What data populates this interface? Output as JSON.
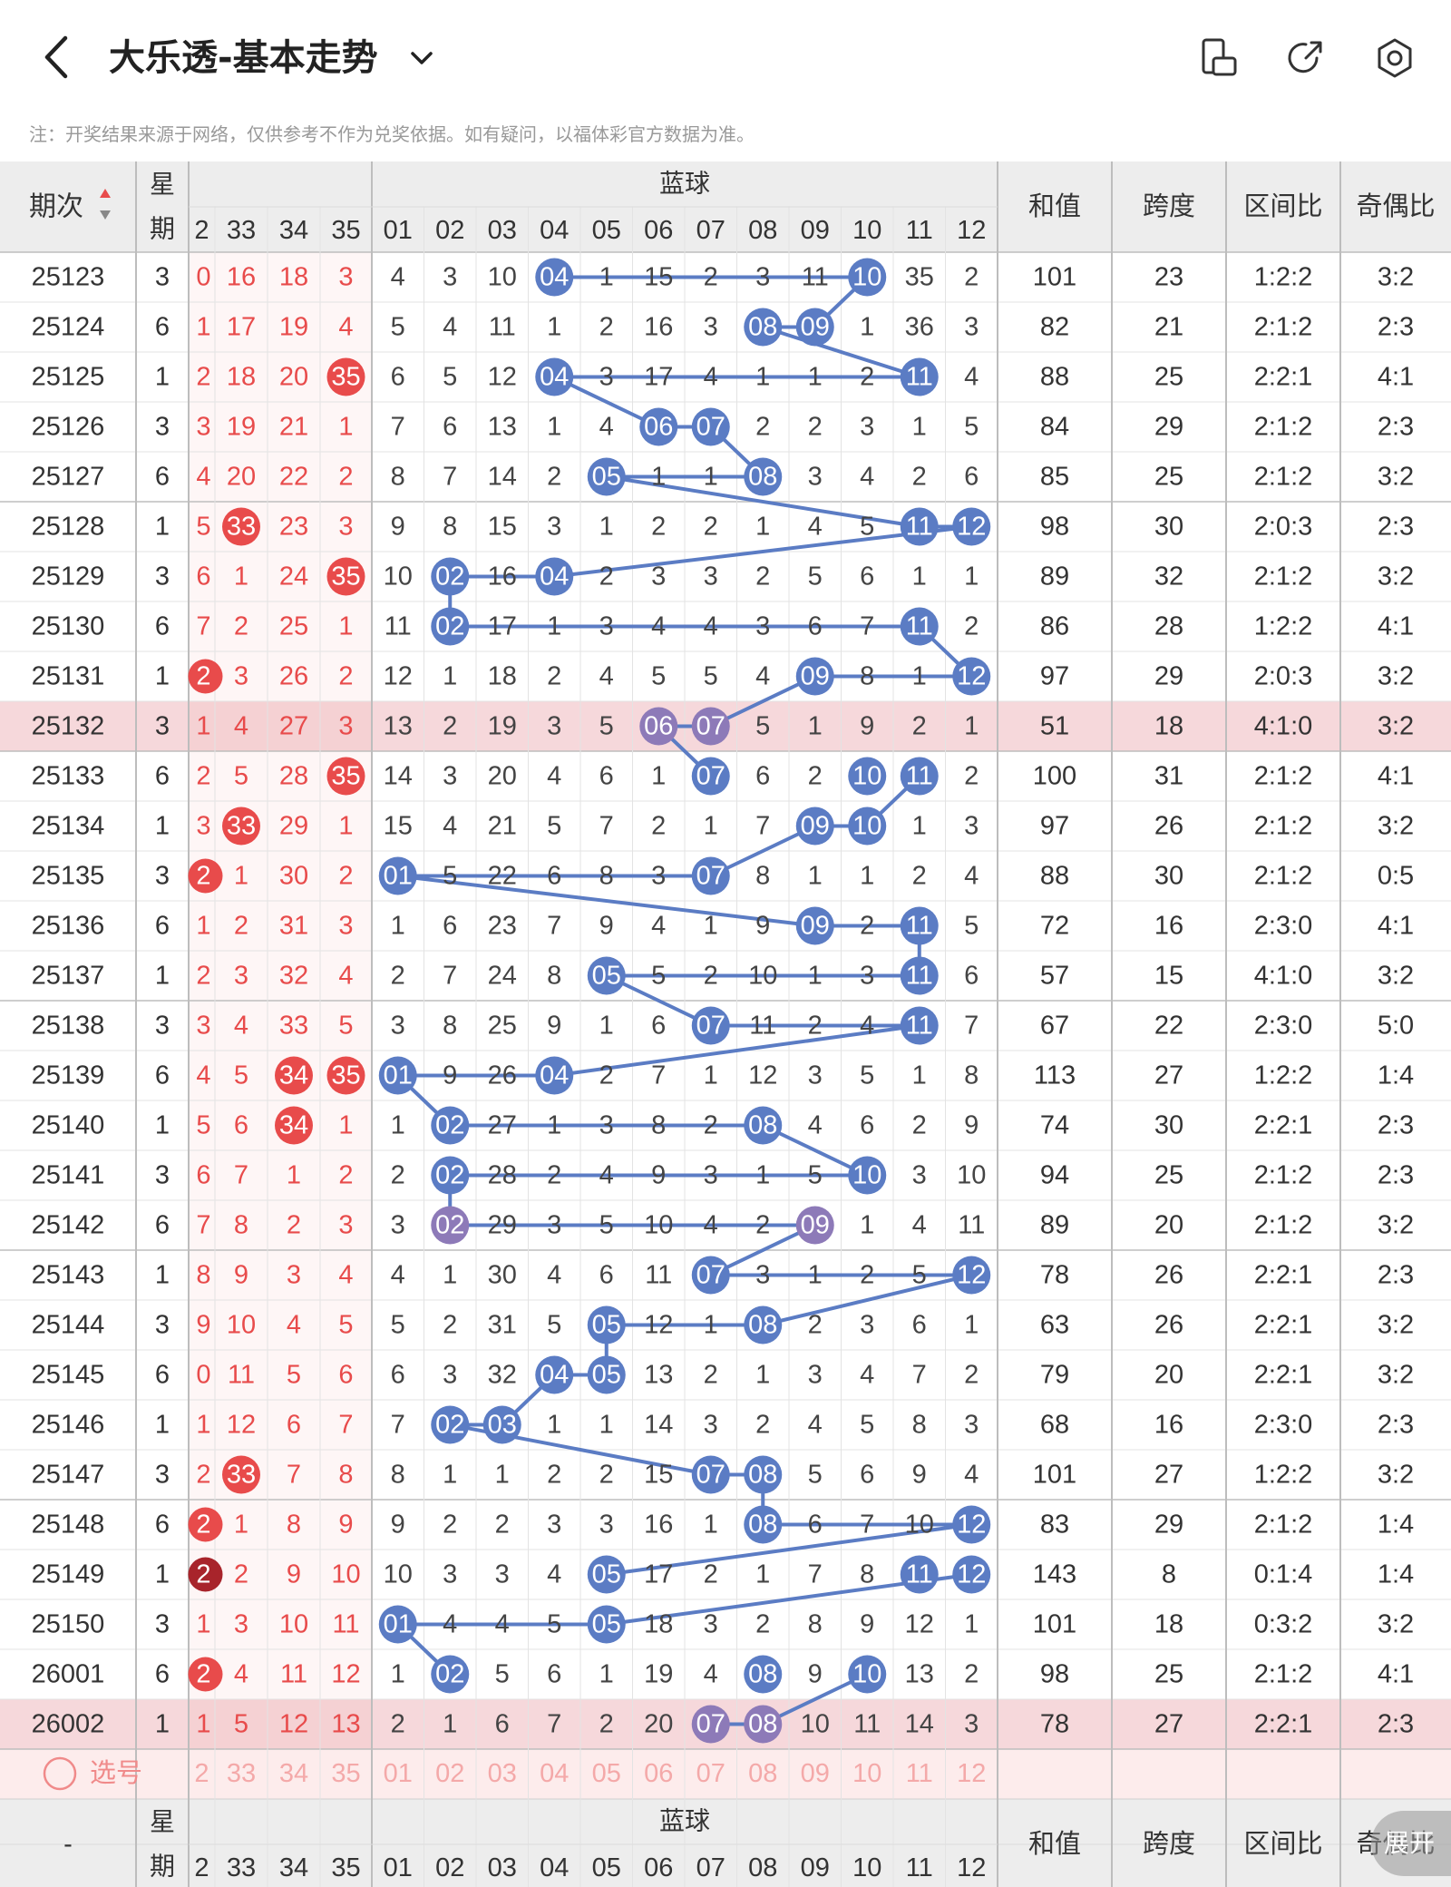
{
  "header": {
    "title": "大乐透-基本走势",
    "back_icon": "chevron-left-icon",
    "dropdown_icon": "chevron-down-icon",
    "action_icons": [
      "phone-rotate-icon",
      "share-icon",
      "settings-icon"
    ]
  },
  "note": "注：开奖结果来源于网络，仅供参考不作为兑奖依据。如有疑问，以福体彩官方数据为准。",
  "table": {
    "header": {
      "period": "期次",
      "weekday_top": "星",
      "weekday_bottom": "期",
      "blue_group": "蓝球",
      "sum": "和值",
      "span": "跨度",
      "zone_ratio": "区间比",
      "odd_even": "奇偶比"
    },
    "front_cols": [
      "2",
      "33",
      "34",
      "35"
    ],
    "blue_cols": [
      "01",
      "02",
      "03",
      "04",
      "05",
      "06",
      "07",
      "08",
      "09",
      "10",
      "11",
      "12"
    ],
    "rows": [
      {
        "period": "25123",
        "week": "3",
        "f": [
          "0",
          "16",
          "18",
          "3"
        ],
        "b": [
          "4",
          "3",
          "10",
          "04",
          "1",
          "15",
          "2",
          "3",
          "11",
          "10",
          "35",
          "2"
        ],
        "sum": "101",
        "span": "23",
        "zone": "1:2:2",
        "oe": "3:2"
      },
      {
        "period": "25124",
        "week": "6",
        "f": [
          "1",
          "17",
          "19",
          "4"
        ],
        "b": [
          "5",
          "4",
          "11",
          "1",
          "2",
          "16",
          "3",
          "08",
          "09",
          "1",
          "36",
          "3"
        ],
        "sum": "82",
        "span": "21",
        "zone": "2:1:2",
        "oe": "2:3"
      },
      {
        "period": "25125",
        "week": "1",
        "f": [
          "2",
          "18",
          "20",
          "35"
        ],
        "b": [
          "6",
          "5",
          "12",
          "04",
          "3",
          "17",
          "4",
          "1",
          "1",
          "2",
          "11",
          "4"
        ],
        "sum": "88",
        "span": "25",
        "zone": "2:2:1",
        "oe": "4:1"
      },
      {
        "period": "25126",
        "week": "3",
        "f": [
          "3",
          "19",
          "21",
          "1"
        ],
        "b": [
          "7",
          "6",
          "13",
          "1",
          "4",
          "06",
          "07",
          "2",
          "2",
          "3",
          "1",
          "5"
        ],
        "sum": "84",
        "span": "29",
        "zone": "2:1:2",
        "oe": "2:3"
      },
      {
        "period": "25127",
        "week": "6",
        "f": [
          "4",
          "20",
          "22",
          "2"
        ],
        "b": [
          "8",
          "7",
          "14",
          "2",
          "05",
          "1",
          "1",
          "08",
          "3",
          "4",
          "2",
          "6"
        ],
        "sum": "85",
        "span": "25",
        "zone": "2:1:2",
        "oe": "3:2"
      },
      {
        "period": "25128",
        "week": "1",
        "f": [
          "5",
          "33",
          "23",
          "3"
        ],
        "b": [
          "9",
          "8",
          "15",
          "3",
          "1",
          "2",
          "2",
          "1",
          "4",
          "5",
          "11",
          "12"
        ],
        "sum": "98",
        "span": "30",
        "zone": "2:0:3",
        "oe": "2:3"
      },
      {
        "period": "25129",
        "week": "3",
        "f": [
          "6",
          "1",
          "24",
          "35"
        ],
        "b": [
          "10",
          "02",
          "16",
          "04",
          "2",
          "3",
          "3",
          "2",
          "5",
          "6",
          "1",
          "1"
        ],
        "sum": "89",
        "span": "32",
        "zone": "2:1:2",
        "oe": "3:2"
      },
      {
        "period": "25130",
        "week": "6",
        "f": [
          "7",
          "2",
          "25",
          "1"
        ],
        "b": [
          "11",
          "02",
          "17",
          "1",
          "3",
          "4",
          "4",
          "3",
          "6",
          "7",
          "11",
          "2"
        ],
        "sum": "86",
        "span": "28",
        "zone": "1:2:2",
        "oe": "4:1"
      },
      {
        "period": "25131",
        "week": "1",
        "f": [
          "2",
          "3",
          "26",
          "2"
        ],
        "b": [
          "12",
          "1",
          "18",
          "2",
          "4",
          "5",
          "5",
          "4",
          "09",
          "8",
          "1",
          "12"
        ],
        "sum": "97",
        "span": "29",
        "zone": "2:0:3",
        "oe": "3:2"
      },
      {
        "period": "25132",
        "week": "3",
        "f": [
          "1",
          "4",
          "27",
          "3"
        ],
        "b": [
          "13",
          "2",
          "19",
          "3",
          "5",
          "06",
          "07",
          "5",
          "1",
          "9",
          "2",
          "1"
        ],
        "sum": "51",
        "span": "18",
        "zone": "4:1:0",
        "oe": "3:2"
      },
      {
        "period": "25133",
        "week": "6",
        "f": [
          "2",
          "5",
          "28",
          "35"
        ],
        "b": [
          "14",
          "3",
          "20",
          "4",
          "6",
          "1",
          "07",
          "6",
          "2",
          "10",
          "11",
          "2"
        ],
        "sum": "100",
        "span": "31",
        "zone": "2:1:2",
        "oe": "4:1"
      },
      {
        "period": "25134",
        "week": "1",
        "f": [
          "3",
          "33",
          "29",
          "1"
        ],
        "b": [
          "15",
          "4",
          "21",
          "5",
          "7",
          "2",
          "1",
          "7",
          "09",
          "10",
          "1",
          "3"
        ],
        "sum": "97",
        "span": "26",
        "zone": "2:1:2",
        "oe": "3:2"
      },
      {
        "period": "25135",
        "week": "3",
        "f": [
          "2",
          "1",
          "30",
          "2"
        ],
        "b": [
          "01",
          "5",
          "22",
          "6",
          "8",
          "3",
          "07",
          "8",
          "1",
          "1",
          "2",
          "4"
        ],
        "sum": "88",
        "span": "30",
        "zone": "2:1:2",
        "oe": "0:5"
      },
      {
        "period": "25136",
        "week": "6",
        "f": [
          "1",
          "2",
          "31",
          "3"
        ],
        "b": [
          "1",
          "6",
          "23",
          "7",
          "9",
          "4",
          "1",
          "9",
          "09",
          "2",
          "11",
          "5"
        ],
        "sum": "72",
        "span": "16",
        "zone": "2:3:0",
        "oe": "4:1"
      },
      {
        "period": "25137",
        "week": "1",
        "f": [
          "2",
          "3",
          "32",
          "4"
        ],
        "b": [
          "2",
          "7",
          "24",
          "8",
          "05",
          "5",
          "2",
          "10",
          "1",
          "3",
          "11",
          "6"
        ],
        "sum": "57",
        "span": "15",
        "zone": "4:1:0",
        "oe": "3:2"
      },
      {
        "period": "25138",
        "week": "3",
        "f": [
          "3",
          "4",
          "33",
          "5"
        ],
        "b": [
          "3",
          "8",
          "25",
          "9",
          "1",
          "6",
          "07",
          "11",
          "2",
          "4",
          "11",
          "7"
        ],
        "sum": "67",
        "span": "22",
        "zone": "2:3:0",
        "oe": "5:0"
      },
      {
        "period": "25139",
        "week": "6",
        "f": [
          "4",
          "5",
          "34",
          "35"
        ],
        "b": [
          "01",
          "9",
          "26",
          "04",
          "2",
          "7",
          "1",
          "12",
          "3",
          "5",
          "1",
          "8"
        ],
        "sum": "113",
        "span": "27",
        "zone": "1:2:2",
        "oe": "1:4"
      },
      {
        "period": "25140",
        "week": "1",
        "f": [
          "5",
          "6",
          "34",
          "1"
        ],
        "b": [
          "1",
          "02",
          "27",
          "1",
          "3",
          "8",
          "2",
          "08",
          "4",
          "6",
          "2",
          "9"
        ],
        "sum": "74",
        "span": "30",
        "zone": "2:2:1",
        "oe": "2:3"
      },
      {
        "period": "25141",
        "week": "3",
        "f": [
          "6",
          "7",
          "1",
          "2"
        ],
        "b": [
          "2",
          "02",
          "28",
          "2",
          "4",
          "9",
          "3",
          "1",
          "5",
          "10",
          "3",
          "10"
        ],
        "sum": "94",
        "span": "25",
        "zone": "2:1:2",
        "oe": "2:3"
      },
      {
        "period": "25142",
        "week": "6",
        "f": [
          "7",
          "8",
          "2",
          "3"
        ],
        "b": [
          "3",
          "02",
          "29",
          "3",
          "5",
          "10",
          "4",
          "2",
          "09",
          "1",
          "4",
          "11"
        ],
        "sum": "89",
        "span": "20",
        "zone": "2:1:2",
        "oe": "3:2"
      },
      {
        "period": "25143",
        "week": "1",
        "f": [
          "8",
          "9",
          "3",
          "4"
        ],
        "b": [
          "4",
          "1",
          "30",
          "4",
          "6",
          "11",
          "07",
          "3",
          "1",
          "2",
          "5",
          "12"
        ],
        "sum": "78",
        "span": "26",
        "zone": "2:2:1",
        "oe": "2:3"
      },
      {
        "period": "25144",
        "week": "3",
        "f": [
          "9",
          "10",
          "4",
          "5"
        ],
        "b": [
          "5",
          "2",
          "31",
          "5",
          "05",
          "12",
          "1",
          "08",
          "2",
          "3",
          "6",
          "1"
        ],
        "sum": "63",
        "span": "26",
        "zone": "2:2:1",
        "oe": "3:2"
      },
      {
        "period": "25145",
        "week": "6",
        "f": [
          "0",
          "11",
          "5",
          "6"
        ],
        "b": [
          "6",
          "3",
          "32",
          "04",
          "05",
          "13",
          "2",
          "1",
          "3",
          "4",
          "7",
          "2"
        ],
        "sum": "79",
        "span": "20",
        "zone": "2:2:1",
        "oe": "3:2"
      },
      {
        "period": "25146",
        "week": "1",
        "f": [
          "1",
          "12",
          "6",
          "7"
        ],
        "b": [
          "7",
          "02",
          "03",
          "1",
          "1",
          "14",
          "3",
          "2",
          "4",
          "5",
          "8",
          "3"
        ],
        "sum": "68",
        "span": "16",
        "zone": "2:3:0",
        "oe": "2:3"
      },
      {
        "period": "25147",
        "week": "3",
        "f": [
          "2",
          "33",
          "7",
          "8"
        ],
        "b": [
          "8",
          "1",
          "1",
          "2",
          "2",
          "15",
          "07",
          "08",
          "5",
          "6",
          "9",
          "4"
        ],
        "sum": "101",
        "span": "27",
        "zone": "1:2:2",
        "oe": "3:2"
      },
      {
        "period": "25148",
        "week": "6",
        "f": [
          "2",
          "1",
          "8",
          "9"
        ],
        "b": [
          "9",
          "2",
          "2",
          "3",
          "3",
          "16",
          "1",
          "08",
          "6",
          "7",
          "10",
          "12"
        ],
        "sum": "83",
        "span": "29",
        "zone": "2:1:2",
        "oe": "1:4"
      },
      {
        "period": "25149",
        "week": "1",
        "f": [
          "2",
          "2",
          "9",
          "10"
        ],
        "b": [
          "10",
          "3",
          "3",
          "4",
          "05",
          "17",
          "2",
          "1",
          "7",
          "8",
          "11",
          "12"
        ],
        "sum": "143",
        "span": "8",
        "zone": "0:1:4",
        "oe": "1:4"
      },
      {
        "period": "25150",
        "week": "3",
        "f": [
          "1",
          "3",
          "10",
          "11"
        ],
        "b": [
          "01",
          "4",
          "4",
          "5",
          "05",
          "18",
          "3",
          "2",
          "8",
          "9",
          "12",
          "1"
        ],
        "sum": "101",
        "span": "18",
        "zone": "0:3:2",
        "oe": "3:2"
      },
      {
        "period": "26001",
        "week": "6",
        "f": [
          "2",
          "4",
          "11",
          "12"
        ],
        "b": [
          "1",
          "02",
          "5",
          "6",
          "1",
          "19",
          "4",
          "08",
          "9",
          "10",
          "13",
          "2"
        ],
        "sum": "98",
        "span": "25",
        "zone": "2:1:2",
        "oe": "4:1"
      },
      {
        "period": "26002",
        "week": "1",
        "f": [
          "1",
          "5",
          "12",
          "13"
        ],
        "b": [
          "2",
          "1",
          "6",
          "7",
          "2",
          "20",
          "07",
          "08",
          "10",
          "11",
          "14",
          "3"
        ],
        "sum": "78",
        "span": "27",
        "zone": "2:2:1",
        "oe": "2:3"
      }
    ],
    "select_label": "选号",
    "footer_period": "-",
    "colors": {
      "red": "#e84b4b",
      "dark_red": "#a8242b",
      "blue": "#5b7cc4",
      "purple": "#8d7ab8",
      "row_highlight": "#f6d8db",
      "select_row_bg": "#fdecec"
    }
  },
  "expand_button": "展开"
}
